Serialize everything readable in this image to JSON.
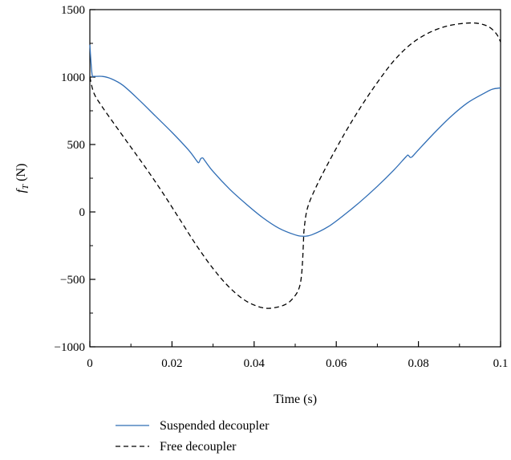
{
  "chart_data": {
    "type": "line",
    "title": "",
    "xlabel": "Time (s)",
    "ylabel_main": "f",
    "ylabel_sub": "T",
    "ylabel_unit": " (N)",
    "xlim": [
      0,
      0.1
    ],
    "ylim": [
      -1000,
      1500
    ],
    "xticks": [
      0,
      0.02,
      0.04,
      0.06,
      0.08,
      0.1
    ],
    "xtick_labels": [
      "0",
      "0.02",
      "0.04",
      "0.06",
      "0.08",
      "0.1"
    ],
    "yticks": [
      -1000,
      -500,
      0,
      500,
      1000,
      1500
    ],
    "ytick_labels": [
      "−1000",
      "−500",
      "0",
      "500",
      "1000",
      "1500"
    ],
    "grid": false,
    "legend_position": "bottom-left, below axes",
    "series": [
      {
        "name": "Suspended decoupler",
        "color": "#2f6db5",
        "dash": "solid",
        "points": [
          [
            0,
            1240
          ],
          [
            0.0003,
            1100
          ],
          [
            0.0006,
            1010
          ],
          [
            0.001,
            1005
          ],
          [
            0.003,
            1005
          ],
          [
            0.005,
            990
          ],
          [
            0.008,
            940
          ],
          [
            0.012,
            830
          ],
          [
            0.016,
            710
          ],
          [
            0.02,
            590
          ],
          [
            0.024,
            460
          ],
          [
            0.026,
            380
          ],
          [
            0.0265,
            365
          ],
          [
            0.027,
            395
          ],
          [
            0.0275,
            400
          ],
          [
            0.028,
            380
          ],
          [
            0.03,
            300
          ],
          [
            0.034,
            170
          ],
          [
            0.038,
            60
          ],
          [
            0.042,
            -40
          ],
          [
            0.046,
            -120
          ],
          [
            0.05,
            -170
          ],
          [
            0.052,
            -180
          ],
          [
            0.054,
            -170
          ],
          [
            0.058,
            -110
          ],
          [
            0.062,
            -20
          ],
          [
            0.066,
            80
          ],
          [
            0.07,
            190
          ],
          [
            0.074,
            310
          ],
          [
            0.077,
            410
          ],
          [
            0.0775,
            420
          ],
          [
            0.078,
            405
          ],
          [
            0.0785,
            410
          ],
          [
            0.08,
            460
          ],
          [
            0.084,
            590
          ],
          [
            0.088,
            710
          ],
          [
            0.092,
            810
          ],
          [
            0.096,
            880
          ],
          [
            0.098,
            910
          ],
          [
            0.1,
            920
          ]
        ]
      },
      {
        "name": "Free decoupler",
        "color": "#000000",
        "dash": "dashed",
        "points": [
          [
            0,
            1000
          ],
          [
            0.001,
            880
          ],
          [
            0.003,
            780
          ],
          [
            0.006,
            650
          ],
          [
            0.01,
            480
          ],
          [
            0.014,
            310
          ],
          [
            0.018,
            130
          ],
          [
            0.022,
            -60
          ],
          [
            0.026,
            -250
          ],
          [
            0.03,
            -420
          ],
          [
            0.034,
            -560
          ],
          [
            0.038,
            -660
          ],
          [
            0.042,
            -710
          ],
          [
            0.045,
            -710
          ],
          [
            0.048,
            -680
          ],
          [
            0.05,
            -620
          ],
          [
            0.051,
            -560
          ],
          [
            0.0515,
            -480
          ],
          [
            0.0518,
            -360
          ],
          [
            0.052,
            -230
          ],
          [
            0.0522,
            -120
          ],
          [
            0.053,
            30
          ],
          [
            0.055,
            180
          ],
          [
            0.058,
            360
          ],
          [
            0.062,
            580
          ],
          [
            0.066,
            780
          ],
          [
            0.07,
            960
          ],
          [
            0.074,
            1120
          ],
          [
            0.078,
            1240
          ],
          [
            0.082,
            1320
          ],
          [
            0.086,
            1370
          ],
          [
            0.09,
            1395
          ],
          [
            0.094,
            1400
          ],
          [
            0.097,
            1375
          ],
          [
            0.099,
            1320
          ],
          [
            0.1,
            1260
          ]
        ]
      }
    ]
  }
}
